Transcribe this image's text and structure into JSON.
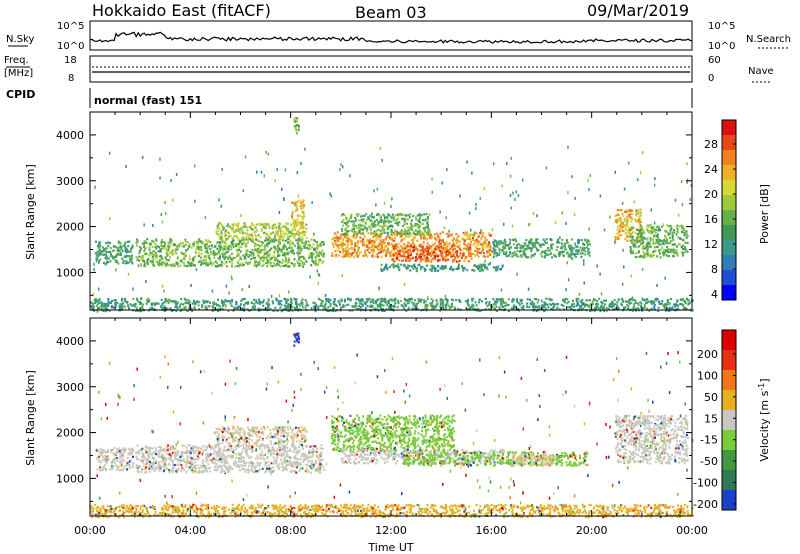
{
  "header": {
    "title": "Hokkaido East (fitACF)",
    "beam": "Beam 03",
    "date": "09/Mar/2019"
  },
  "strip": {
    "nsky_label": "N.Sky",
    "nsky_ticks": [
      "10^5",
      "10^0"
    ],
    "nsearch_label": "N.Search",
    "nsearch_ticks": [
      "10^5",
      "10^0"
    ],
    "freq_label": "Freq.",
    "freq_unit": "[MHz]",
    "freq_ticks": [
      "18",
      "8"
    ],
    "nave_label": "Nave",
    "nave_ticks": [
      "60",
      "0"
    ],
    "cpid_label": "CPID",
    "cpid_value": "normal (fast) 151"
  },
  "chart_data": [
    {
      "type": "heatmap",
      "panel": "power",
      "x_label": "Time UT",
      "x_ticks": [
        "00:00",
        "04:00",
        "08:00",
        "12:00",
        "16:00",
        "20:00",
        "00:00"
      ],
      "x_range_hours": [
        0,
        24
      ],
      "ylabel": "Slant Range [km]",
      "y_ticks": [
        "4000",
        "3000",
        "2000",
        "1000"
      ],
      "ylim": [
        180,
        4500
      ],
      "colorbar": {
        "label": "Power [dB]",
        "ticks": [
          "28",
          "24",
          "20",
          "16",
          "12",
          "8",
          "4"
        ],
        "range": [
          0,
          30
        ],
        "colors": [
          "#0000ff",
          "#1e4fd8",
          "#2e7fb8",
          "#3a9a8a",
          "#3f9a5a",
          "#66b04a",
          "#9ccc3c",
          "#d7d736",
          "#f0b02a",
          "#f08020",
          "#e84818",
          "#dd1010"
        ]
      },
      "bands": [
        {
          "t0": 0.2,
          "t1": 1.7,
          "r0": 1200,
          "r1": 1700,
          "level": 11
        },
        {
          "t0": 1.8,
          "t1": 9.3,
          "r0": 1150,
          "r1": 1750,
          "level": 14
        },
        {
          "t0": 5.0,
          "t1": 8.6,
          "r0": 1750,
          "r1": 2100,
          "level": 17
        },
        {
          "t0": 8.0,
          "t1": 8.5,
          "r0": 1800,
          "r1": 2600,
          "level": 20
        },
        {
          "t0": 9.6,
          "t1": 16.0,
          "r0": 1350,
          "r1": 1900,
          "level": 23
        },
        {
          "t0": 12.0,
          "t1": 15.2,
          "r0": 1250,
          "r1": 1600,
          "level": 26
        },
        {
          "t0": 10.0,
          "t1": 13.5,
          "r0": 1850,
          "r1": 2300,
          "level": 13
        },
        {
          "t0": 16.0,
          "t1": 19.9,
          "r0": 1350,
          "r1": 1750,
          "level": 11
        },
        {
          "t0": 20.9,
          "t1": 22.0,
          "r0": 1700,
          "r1": 2400,
          "level": 21
        },
        {
          "t0": 21.5,
          "t1": 23.8,
          "r0": 1350,
          "r1": 2050,
          "level": 13
        },
        {
          "t0": 0.0,
          "t1": 24.0,
          "r0": 180,
          "r1": 450,
          "level": 10
        },
        {
          "t0": 8.1,
          "t1": 8.3,
          "r0": 4000,
          "r1": 4400,
          "level": 14
        },
        {
          "t0": 11.5,
          "t1": 16.5,
          "r0": 1050,
          "r1": 1200,
          "level": 9
        }
      ]
    },
    {
      "type": "heatmap",
      "panel": "velocity",
      "x_label": "Time UT",
      "x_ticks": [
        "00:00",
        "04:00",
        "08:00",
        "12:00",
        "16:00",
        "20:00",
        "00:00"
      ],
      "x_range_hours": [
        0,
        24
      ],
      "ylabel": "Slant Range [km]",
      "y_ticks": [
        "4000",
        "3000",
        "2000",
        "1000"
      ],
      "ylim": [
        180,
        4500
      ],
      "colorbar": {
        "label": "Velocity [m s^-1]",
        "ticks": [
          "200",
          "100",
          "50",
          "15",
          "-15",
          "-50",
          "-100",
          "-200"
        ],
        "colors": [
          "#1a3fc8",
          "#2f7a55",
          "#3f9a40",
          "#7acc3a",
          "#c8c8c0",
          "#e8b020",
          "#f07818",
          "#e83010",
          "#dd0000"
        ]
      },
      "bands": [
        {
          "t0": 0.2,
          "t1": 1.7,
          "r0": 1200,
          "r1": 1700,
          "color": "#c8c8c0"
        },
        {
          "t0": 1.8,
          "t1": 9.3,
          "r0": 1150,
          "r1": 1750,
          "color": "#c8c8c0"
        },
        {
          "t0": 5.0,
          "t1": 8.6,
          "r0": 1750,
          "r1": 2150,
          "color": "#d6c9a4"
        },
        {
          "t0": 9.6,
          "t1": 14.5,
          "r0": 1600,
          "r1": 2400,
          "color": "#7acc3a"
        },
        {
          "t0": 10.0,
          "t1": 16.5,
          "r0": 1350,
          "r1": 1650,
          "color": "#c8c8c0"
        },
        {
          "t0": 12.5,
          "t1": 19.8,
          "r0": 1300,
          "r1": 1600,
          "color": "#7acc3a"
        },
        {
          "t0": 16.8,
          "t1": 18.5,
          "r0": 1300,
          "r1": 1550,
          "color": "#e8c080"
        },
        {
          "t0": 20.9,
          "t1": 23.8,
          "r0": 1350,
          "r1": 2400,
          "color": "#c8c8c0"
        },
        {
          "t0": 0.0,
          "t1": 24.0,
          "r0": 180,
          "r1": 450,
          "color": "#e8b020"
        },
        {
          "t0": 8.1,
          "t1": 8.3,
          "r0": 3850,
          "r1": 4200,
          "color": "#1a3fc8"
        }
      ]
    }
  ]
}
